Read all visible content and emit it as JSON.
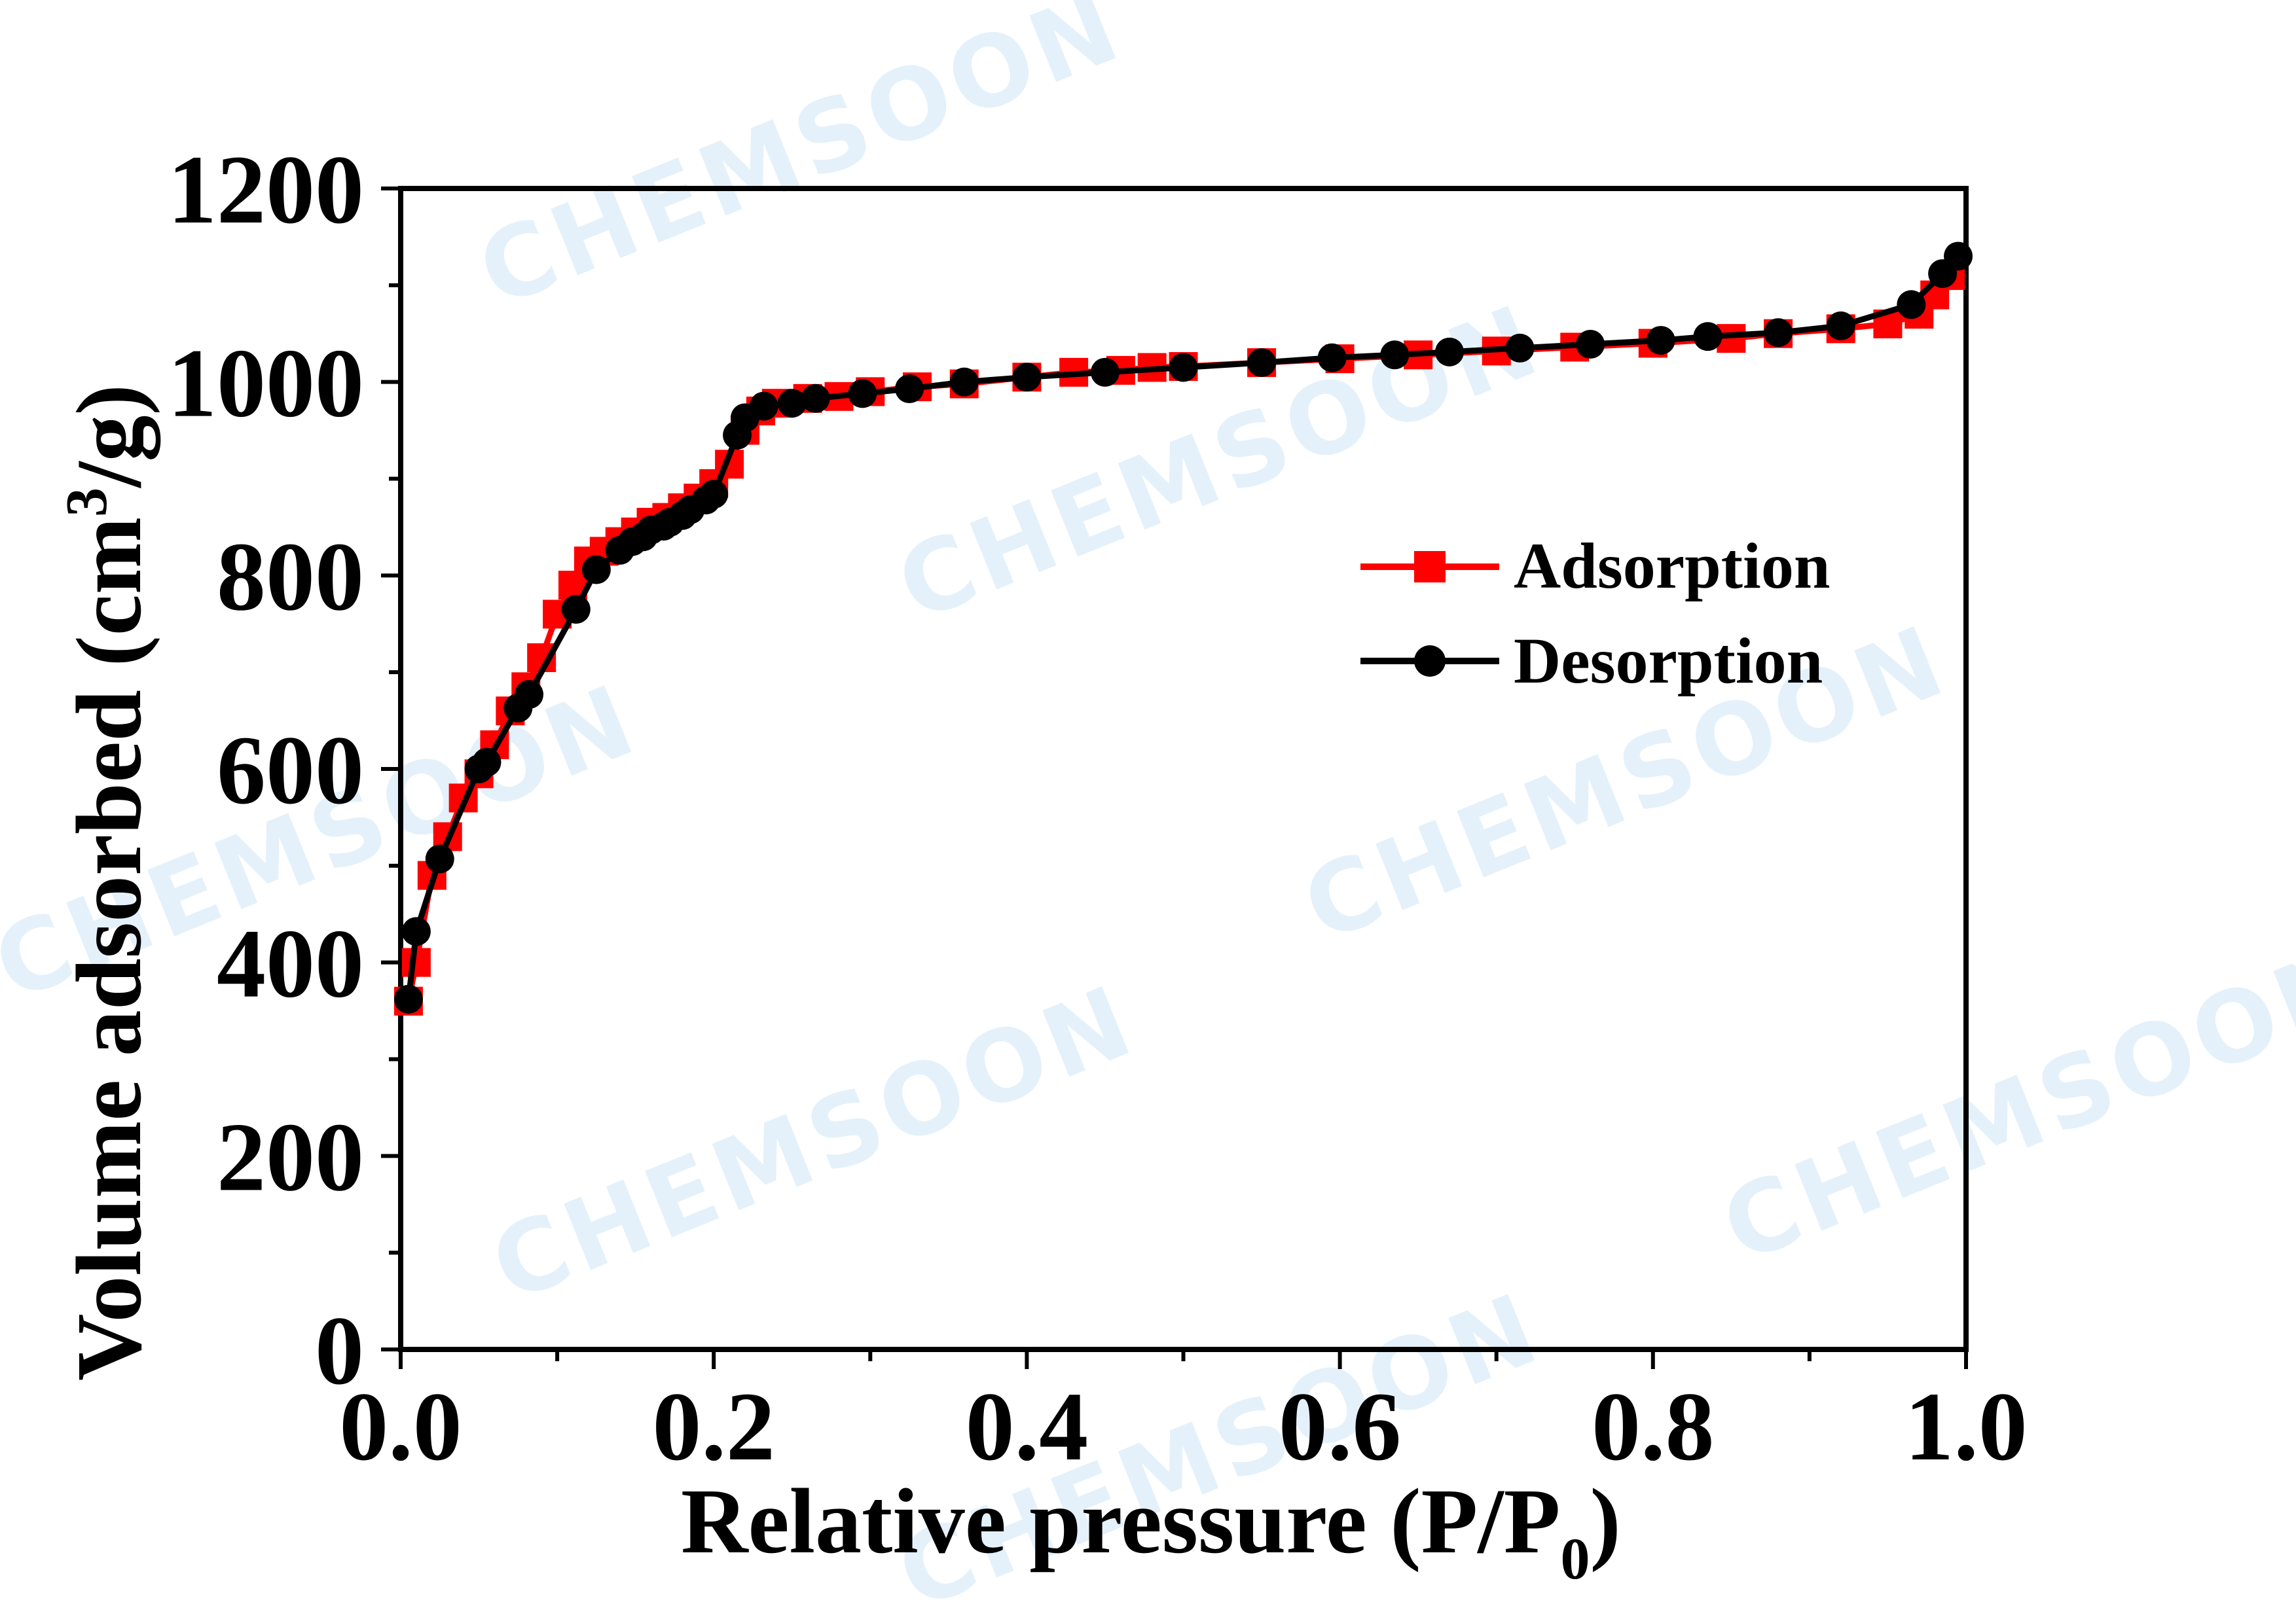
{
  "watermark": "CHEMSOON",
  "chart_data": {
    "type": "line",
    "title": "",
    "xlabel": "Relative pressure  (P/P",
    "xlabel_subscript": "0",
    "xlabel_suffix": ")",
    "ylabel": "Volume adsorbed (cm",
    "ylabel_superscript": "3",
    "ylabel_suffix": "/g)",
    "xlim": [
      0.0,
      1.0
    ],
    "ylim": [
      0,
      1200
    ],
    "x_ticks": [
      "0.0",
      "0.2",
      "0.4",
      "0.6",
      "0.8",
      "1.0"
    ],
    "y_ticks": [
      "0",
      "200",
      "400",
      "600",
      "800",
      "1000",
      "1200"
    ],
    "legend_position": "center-right",
    "series": [
      {
        "name": "Adsorption",
        "color": "#ff0000",
        "marker": "square",
        "x": [
          0.005,
          0.01,
          0.02,
          0.03,
          0.04,
          0.05,
          0.06,
          0.07,
          0.08,
          0.09,
          0.1,
          0.11,
          0.12,
          0.13,
          0.14,
          0.15,
          0.16,
          0.17,
          0.18,
          0.19,
          0.2,
          0.21,
          0.22,
          0.23,
          0.24,
          0.26,
          0.28,
          0.3,
          0.33,
          0.36,
          0.4,
          0.43,
          0.46,
          0.48,
          0.5,
          0.55,
          0.6,
          0.65,
          0.7,
          0.75,
          0.8,
          0.85,
          0.88,
          0.92,
          0.95,
          0.97,
          0.98,
          0.99
        ],
        "y": [
          360,
          400,
          490,
          530,
          570,
          595,
          625,
          660,
          685,
          715,
          760,
          790,
          815,
          825,
          835,
          845,
          855,
          860,
          870,
          880,
          895,
          915,
          950,
          970,
          978,
          983,
          985,
          990,
          995,
          998,
          1005,
          1010,
          1012,
          1015,
          1016,
          1020,
          1024,
          1028,
          1032,
          1036,
          1040,
          1045,
          1050,
          1055,
          1060,
          1070,
          1090,
          1110
        ]
      },
      {
        "name": "Desorption",
        "color": "#000000",
        "marker": "circle",
        "x": [
          0.005,
          0.01,
          0.025,
          0.05,
          0.055,
          0.075,
          0.082,
          0.112,
          0.125,
          0.14,
          0.148,
          0.155,
          0.16,
          0.168,
          0.172,
          0.18,
          0.185,
          0.195,
          0.2,
          0.215,
          0.22,
          0.232,
          0.25,
          0.265,
          0.295,
          0.325,
          0.36,
          0.4,
          0.45,
          0.5,
          0.55,
          0.595,
          0.635,
          0.67,
          0.715,
          0.76,
          0.805,
          0.835,
          0.88,
          0.92,
          0.965,
          0.985,
          0.995
        ],
        "y": [
          362,
          432,
          507,
          600,
          607,
          663,
          677,
          765,
          806,
          826,
          835,
          840,
          847,
          851,
          855,
          862,
          868,
          878,
          884,
          945,
          963,
          975,
          978,
          983,
          988,
          993,
          1000,
          1005,
          1010,
          1015,
          1020,
          1025,
          1028,
          1031,
          1035,
          1039,
          1043,
          1047,
          1051,
          1058,
          1080,
          1112,
          1130
        ]
      }
    ]
  }
}
